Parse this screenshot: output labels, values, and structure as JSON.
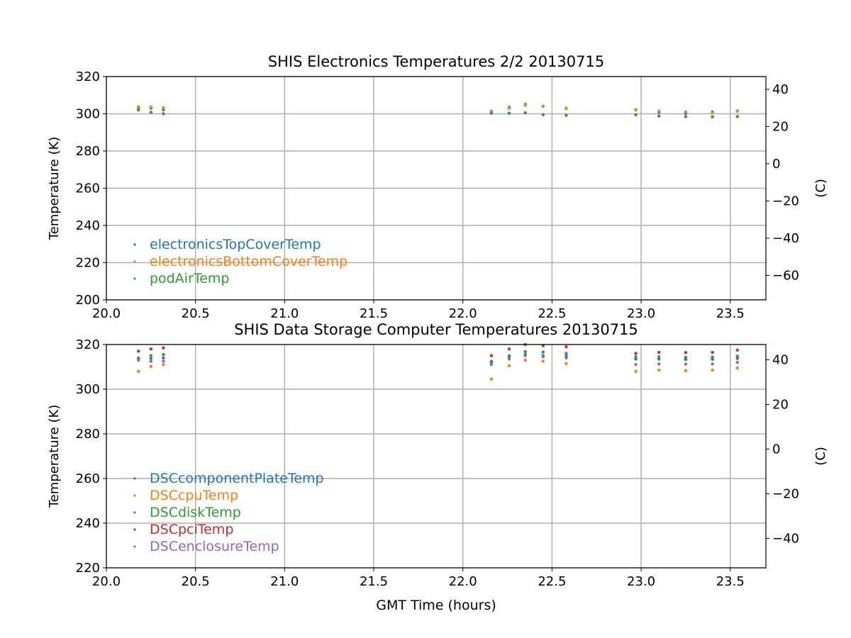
{
  "figure": {
    "xlabel": "GMT Time (hours)"
  },
  "chart_data": [
    {
      "type": "scatter",
      "title": "SHIS Electronics Temperatures 2/2 20130715",
      "xlabel": "",
      "ylabel": "Temperature (K)",
      "y2label": "(C)",
      "xlim": [
        20.0,
        23.7
      ],
      "ylim": [
        200,
        320
      ],
      "xticks": [
        "20.0",
        "20.5",
        "21.0",
        "21.5",
        "22.0",
        "22.5",
        "23.0",
        "23.5"
      ],
      "yticks": [
        "200",
        "220",
        "240",
        "260",
        "280",
        "300",
        "320"
      ],
      "y2ticks": [
        "−60",
        "−40",
        "−20",
        "0",
        "20",
        "40"
      ],
      "grid": true,
      "legend_position": "lower-left",
      "series": [
        {
          "name": "electronicsTopCoverTemp",
          "color": "#1f77b4",
          "points": [
            [
              20.18,
              303.0
            ],
            [
              20.25,
              303.0
            ],
            [
              20.32,
              302.2
            ],
            [
              22.16,
              301.0
            ],
            [
              22.26,
              303.5
            ],
            [
              22.35,
              305.0
            ],
            [
              22.45,
              304.0
            ],
            [
              22.58,
              302.8
            ],
            [
              22.97,
              302.2
            ],
            [
              23.1,
              300.8
            ],
            [
              23.25,
              300.2
            ],
            [
              23.4,
              301.0
            ],
            [
              23.54,
              301.5
            ]
          ]
        },
        {
          "name": "electronicsBottomCoverTemp",
          "color": "#ff7f0e",
          "points": [
            [
              20.18,
              303.8
            ],
            [
              20.25,
              303.6
            ],
            [
              20.32,
              303.2
            ],
            [
              22.16,
              301.5
            ],
            [
              22.26,
              303.0
            ],
            [
              22.35,
              304.6
            ],
            [
              22.45,
              304.0
            ],
            [
              22.58,
              303.0
            ],
            [
              22.97,
              302.0
            ],
            [
              23.1,
              301.5
            ],
            [
              23.25,
              301.0
            ],
            [
              23.4,
              300.5
            ],
            [
              23.54,
              301.4
            ]
          ]
        },
        {
          "name": "podAirTemp",
          "color": "#2ca02c",
          "points": [
            [
              20.18,
              302.0
            ],
            [
              20.25,
              300.8
            ],
            [
              20.32,
              300.0
            ],
            [
              22.16,
              300.3
            ],
            [
              22.26,
              300.3
            ],
            [
              22.35,
              300.5
            ],
            [
              22.45,
              299.5
            ],
            [
              22.58,
              299.2
            ],
            [
              22.97,
              299.5
            ],
            [
              23.1,
              298.8
            ],
            [
              23.25,
              298.5
            ],
            [
              23.4,
              298.4
            ],
            [
              23.54,
              298.5
            ]
          ]
        }
      ]
    },
    {
      "type": "scatter",
      "title": "SHIS Data Storage Computer Temperatures 20130715",
      "xlabel": "GMT Time (hours)",
      "ylabel": "Temperature (K)",
      "y2label": "(C)",
      "xlim": [
        20.0,
        23.7
      ],
      "ylim": [
        220,
        320
      ],
      "xticks": [
        "20.0",
        "20.5",
        "21.0",
        "21.5",
        "22.0",
        "22.5",
        "23.0",
        "23.5"
      ],
      "yticks": [
        "220",
        "240",
        "260",
        "280",
        "300",
        "320"
      ],
      "y2ticks": [
        "−40",
        "−20",
        "0",
        "20",
        "40"
      ],
      "grid": true,
      "legend_position": "lower-left",
      "series": [
        {
          "name": "DSCcomponentPlateTemp",
          "color": "#1f77b4",
          "points": [
            [
              20.18,
              313.5
            ],
            [
              20.25,
              313.8
            ],
            [
              20.32,
              314.0
            ],
            [
              22.16,
              312.0
            ],
            [
              22.26,
              314.5
            ],
            [
              22.35,
              315.5
            ],
            [
              22.45,
              315.0
            ],
            [
              22.58,
              314.8
            ],
            [
              22.97,
              313.5
            ],
            [
              23.1,
              313.5
            ],
            [
              23.25,
              313.3
            ],
            [
              23.4,
              313.4
            ],
            [
              23.54,
              313.8
            ]
          ]
        },
        {
          "name": "DSCcpuTemp",
          "color": "#ff7f0e",
          "points": [
            [
              20.18,
              308.0
            ],
            [
              20.25,
              310.2
            ],
            [
              20.32,
              311.0
            ],
            [
              22.16,
              304.5
            ],
            [
              22.26,
              310.5
            ],
            [
              22.35,
              313.0
            ],
            [
              22.45,
              312.5
            ],
            [
              22.58,
              311.5
            ],
            [
              22.97,
              308.0
            ],
            [
              23.1,
              308.5
            ],
            [
              23.25,
              308.3
            ],
            [
              23.4,
              308.5
            ],
            [
              23.54,
              309.5
            ]
          ]
        },
        {
          "name": "DSCdiskTemp",
          "color": "#2ca02c",
          "points": [
            [
              20.18,
              314.0
            ],
            [
              20.25,
              315.0
            ],
            [
              20.32,
              315.5
            ],
            [
              22.16,
              312.5
            ],
            [
              22.26,
              315.0
            ],
            [
              22.35,
              316.8
            ],
            [
              22.45,
              316.6
            ],
            [
              22.58,
              316.0
            ],
            [
              22.97,
              314.5
            ],
            [
              23.1,
              314.5
            ],
            [
              23.25,
              314.3
            ],
            [
              23.4,
              314.4
            ],
            [
              23.54,
              314.8
            ]
          ]
        },
        {
          "name": "DSCpciTemp",
          "color": "#d62728",
          "points": [
            [
              20.18,
              317.0
            ],
            [
              20.25,
              318.0
            ],
            [
              20.32,
              318.5
            ],
            [
              22.16,
              315.0
            ],
            [
              22.26,
              318.0
            ],
            [
              22.35,
              320.0
            ],
            [
              22.45,
              319.5
            ],
            [
              22.58,
              319.0
            ],
            [
              22.97,
              316.0
            ],
            [
              23.1,
              316.5
            ],
            [
              23.25,
              316.4
            ],
            [
              23.4,
              316.5
            ],
            [
              23.54,
              317.5
            ]
          ]
        },
        {
          "name": "DSCenclosureTemp",
          "color": "#9467bd",
          "points": [
            [
              20.18,
              313.0
            ],
            [
              20.25,
              312.5
            ],
            [
              20.32,
              312.5
            ],
            [
              22.16,
              311.0
            ],
            [
              22.26,
              313.5
            ],
            [
              22.35,
              315.0
            ],
            [
              22.45,
              314.5
            ],
            [
              22.58,
              314.0
            ],
            [
              22.97,
              311.0
            ],
            [
              23.1,
              311.3
            ],
            [
              23.25,
              311.2
            ],
            [
              23.4,
              311.3
            ],
            [
              23.54,
              312.0
            ]
          ]
        }
      ]
    }
  ]
}
